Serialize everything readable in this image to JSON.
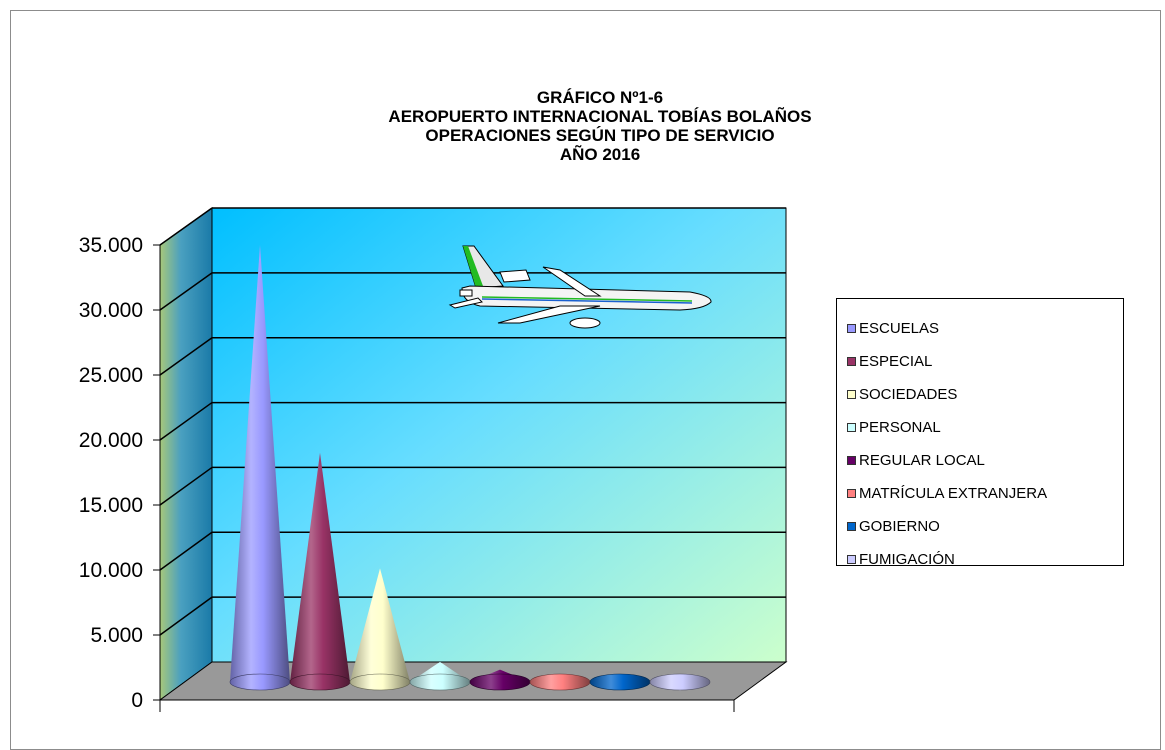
{
  "title": {
    "line1": "GRÁFICO Nº1-6",
    "line2": "AEROPUERTO INTERNACIONAL TOBÍAS BOLAÑOS",
    "line3": "OPERACIONES SEGÚN TIPO DE SERVICIO",
    "line4": "AÑO 2016"
  },
  "picture": {
    "icon": "airplane-icon"
  },
  "chart_data": {
    "type": "bar",
    "shape": "cone",
    "three_d": true,
    "title": "GRÁFICO Nº1-6 AEROPUERTO INTERNACIONAL TOBÍAS BOLAÑOS OPERACIONES SEGÚN TIPO DE SERVICIO AÑO 2016",
    "categories": [
      "ESCUELAS",
      "ESPECIAL",
      "SOCIEDADES",
      "PERSONAL",
      "REGULAR LOCAL",
      "MATRÍCULA EXTRANJERA",
      "GOBIERNO",
      "FUMIGACIÓN"
    ],
    "values": [
      34500,
      18500,
      9600,
      2400,
      1800,
      400,
      300,
      200
    ],
    "colors": [
      "#9999ff",
      "#993366",
      "#ffffcc",
      "#ccffff",
      "#660066",
      "#ff8080",
      "#0066cc",
      "#ccccff"
    ],
    "ylim": [
      0,
      35000
    ],
    "yticks": [
      "0",
      "5.000",
      "10.000",
      "15.000",
      "20.000",
      "25.000",
      "30.000",
      "35.000"
    ],
    "grid": true,
    "legend_position": "right",
    "xlabel": "",
    "ylabel": ""
  }
}
